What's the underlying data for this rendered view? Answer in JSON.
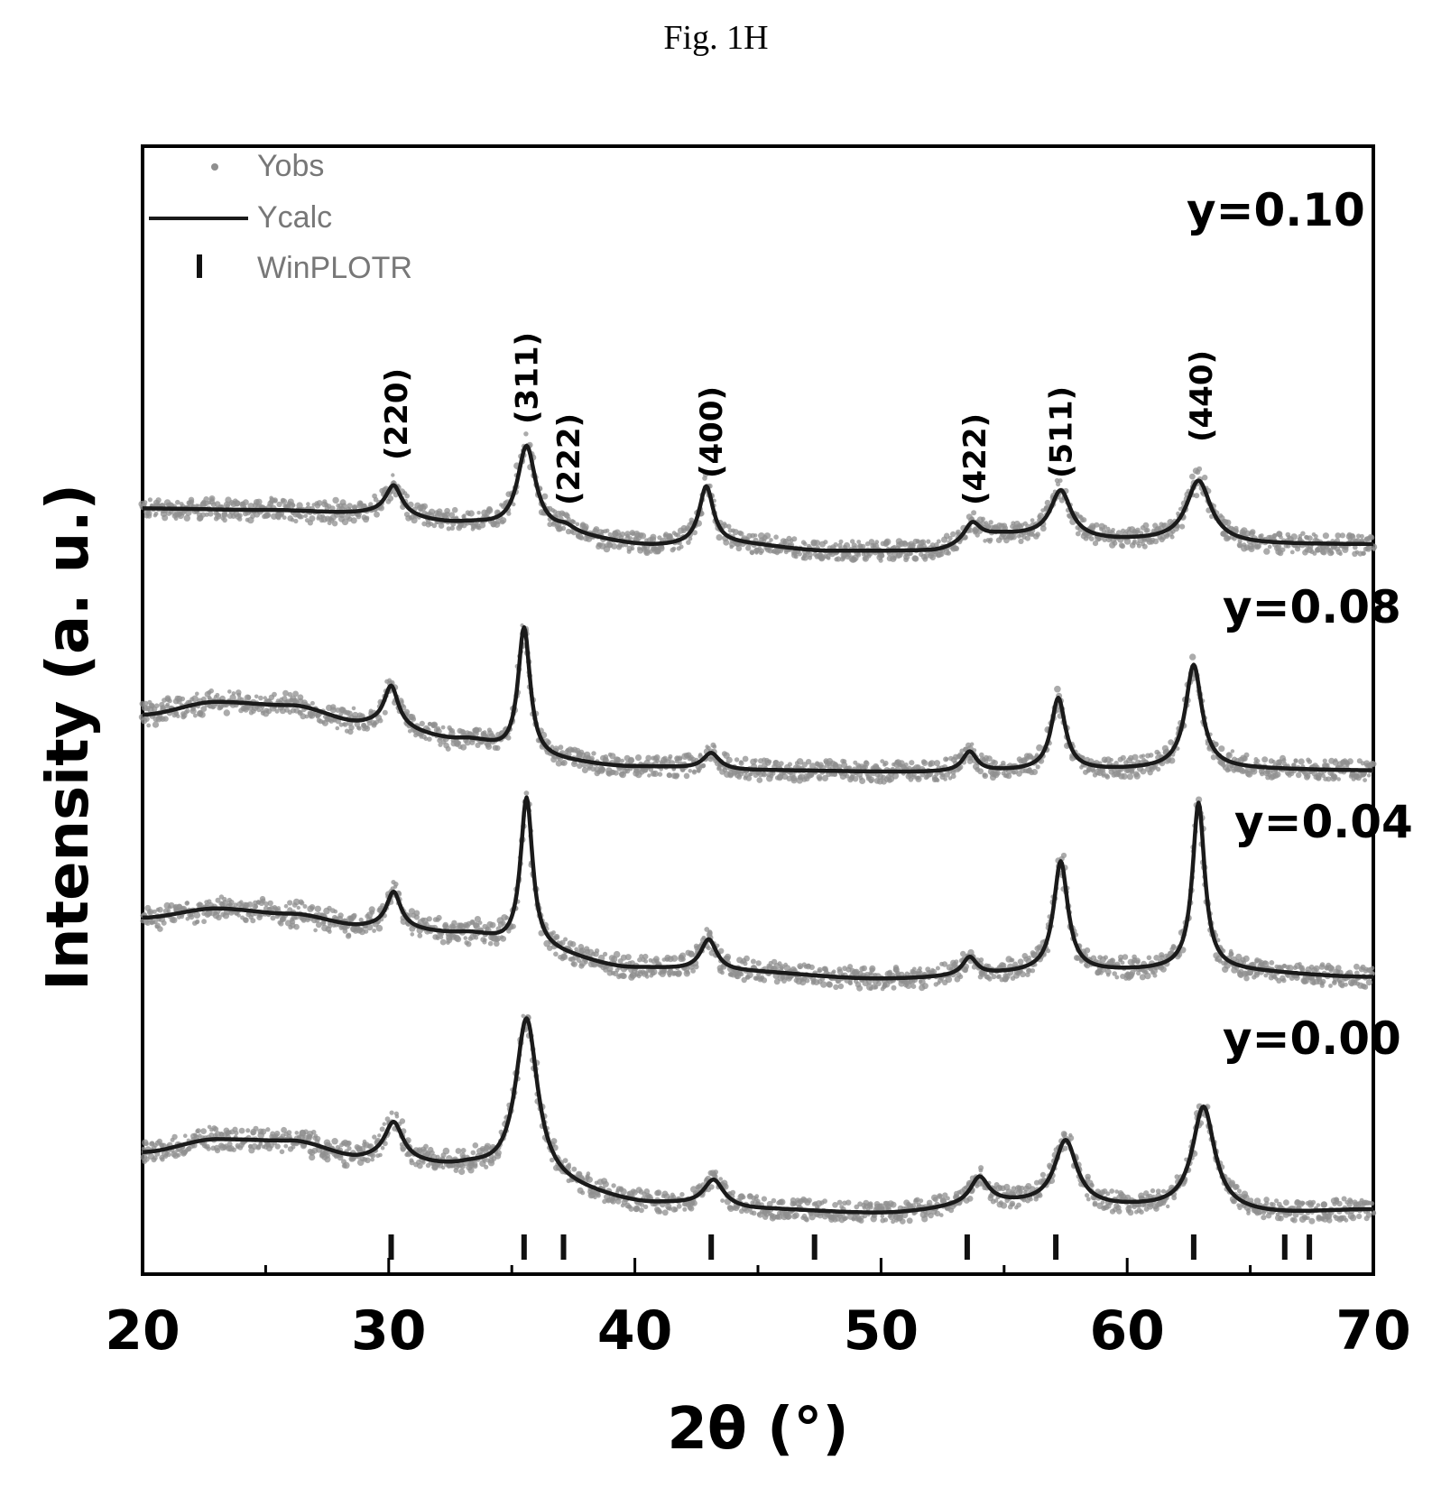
{
  "figure_caption": "Fig. 1H",
  "colors": {
    "observed": "#8f8f8f",
    "calculated": "#1a1a1a",
    "frame": "#000000"
  },
  "chart_data": {
    "type": "line",
    "xlabel": "2θ (°)",
    "ylabel": "Intensity (a. u.)",
    "xlim": [
      20,
      70
    ],
    "xticks": [
      20,
      30,
      40,
      50,
      60,
      70
    ],
    "yticks_shown": false,
    "legend": {
      "placement": "top-left",
      "entries": [
        {
          "label": "Yobs",
          "marker": "dot"
        },
        {
          "label": "Ycalc",
          "marker": "line"
        },
        {
          "label": "WinPLOTR",
          "marker": "tick"
        }
      ]
    },
    "hkl_labels": [
      {
        "text": "(220)",
        "x": 30.3
      },
      {
        "text": "(311)",
        "x": 35.6
      },
      {
        "text": "(222)",
        "x": 37.3
      },
      {
        "text": "(400)",
        "x": 43.1
      },
      {
        "text": "(422)",
        "x": 53.8
      },
      {
        "text": "(511)",
        "x": 57.3
      },
      {
        "text": "(440)",
        "x": 63.0
      }
    ],
    "bragg_positions": [
      30.1,
      35.5,
      37.1,
      43.1,
      47.3,
      53.5,
      57.1,
      62.7,
      66.4,
      67.4
    ],
    "series": [
      {
        "name": "y=0.10",
        "baseline": [
          [
            20,
            0.72
          ],
          [
            25,
            0.7
          ],
          [
            29,
            0.66
          ],
          [
            33,
            0.54
          ],
          [
            36,
            0.44
          ],
          [
            41,
            0.28
          ],
          [
            44,
            0.3
          ],
          [
            48,
            0.22
          ],
          [
            52,
            0.22
          ],
          [
            55,
            0.4
          ],
          [
            60,
            0.34
          ],
          [
            66,
            0.3
          ],
          [
            70,
            0.3
          ]
        ],
        "peaks": [
          {
            "x": 30.2,
            "h": 0.35,
            "w": 0.4
          },
          {
            "x": 35.6,
            "h": 1.0,
            "w": 0.45
          },
          {
            "x": 37.2,
            "h": 0.06,
            "w": 0.4
          },
          {
            "x": 42.9,
            "h": 0.68,
            "w": 0.35
          },
          {
            "x": 53.7,
            "h": 0.22,
            "w": 0.4
          },
          {
            "x": 57.3,
            "h": 0.55,
            "w": 0.5
          },
          {
            "x": 62.9,
            "h": 0.72,
            "w": 0.6
          }
        ]
      },
      {
        "name": "y=0.08",
        "baseline": [
          [
            20,
            0.78
          ],
          [
            23,
            0.92
          ],
          [
            26,
            0.88
          ],
          [
            29,
            0.68
          ],
          [
            33,
            0.5
          ],
          [
            36,
            0.28
          ],
          [
            40,
            0.2
          ],
          [
            45,
            0.16
          ],
          [
            52,
            0.14
          ],
          [
            58,
            0.16
          ],
          [
            63,
            0.18
          ],
          [
            70,
            0.16
          ]
        ],
        "peaks": [
          {
            "x": 30.1,
            "h": 0.45,
            "w": 0.35
          },
          {
            "x": 35.5,
            "h": 1.45,
            "w": 0.3
          },
          {
            "x": 43.1,
            "h": 0.18,
            "w": 0.4
          },
          {
            "x": 53.6,
            "h": 0.22,
            "w": 0.35
          },
          {
            "x": 57.2,
            "h": 0.8,
            "w": 0.35
          },
          {
            "x": 62.7,
            "h": 1.15,
            "w": 0.4
          }
        ]
      },
      {
        "name": "y=0.04",
        "baseline": [
          [
            20,
            0.98
          ],
          [
            23,
            1.08
          ],
          [
            26,
            1.02
          ],
          [
            29,
            0.88
          ],
          [
            33,
            0.8
          ],
          [
            36,
            0.6
          ],
          [
            40,
            0.42
          ],
          [
            44,
            0.38
          ],
          [
            50,
            0.3
          ],
          [
            58,
            0.38
          ],
          [
            63,
            0.4
          ],
          [
            70,
            0.32
          ]
        ],
        "peaks": [
          {
            "x": 30.2,
            "h": 0.4,
            "w": 0.35
          },
          {
            "x": 35.6,
            "h": 1.7,
            "w": 0.3
          },
          {
            "x": 43.0,
            "h": 0.35,
            "w": 0.4
          },
          {
            "x": 53.6,
            "h": 0.2,
            "w": 0.35
          },
          {
            "x": 57.3,
            "h": 1.22,
            "w": 0.35
          },
          {
            "x": 62.9,
            "h": 1.85,
            "w": 0.3
          }
        ]
      },
      {
        "name": "y=0.00",
        "baseline": [
          [
            20,
            0.88
          ],
          [
            23,
            1.02
          ],
          [
            26,
            1.0
          ],
          [
            29,
            0.8
          ],
          [
            33,
            0.7
          ],
          [
            36,
            0.5
          ],
          [
            41,
            0.3
          ],
          [
            45,
            0.24
          ],
          [
            50,
            0.2
          ],
          [
            55,
            0.3
          ],
          [
            60,
            0.26
          ],
          [
            66,
            0.2
          ],
          [
            70,
            0.24
          ]
        ],
        "peaks": [
          {
            "x": 30.2,
            "h": 0.42,
            "w": 0.45
          },
          {
            "x": 35.6,
            "h": 1.85,
            "w": 0.55
          },
          {
            "x": 43.2,
            "h": 0.3,
            "w": 0.5
          },
          {
            "x": 54.0,
            "h": 0.3,
            "w": 0.45
          },
          {
            "x": 57.5,
            "h": 0.72,
            "w": 0.55
          },
          {
            "x": 63.1,
            "h": 1.15,
            "w": 0.55
          }
        ]
      }
    ]
  }
}
